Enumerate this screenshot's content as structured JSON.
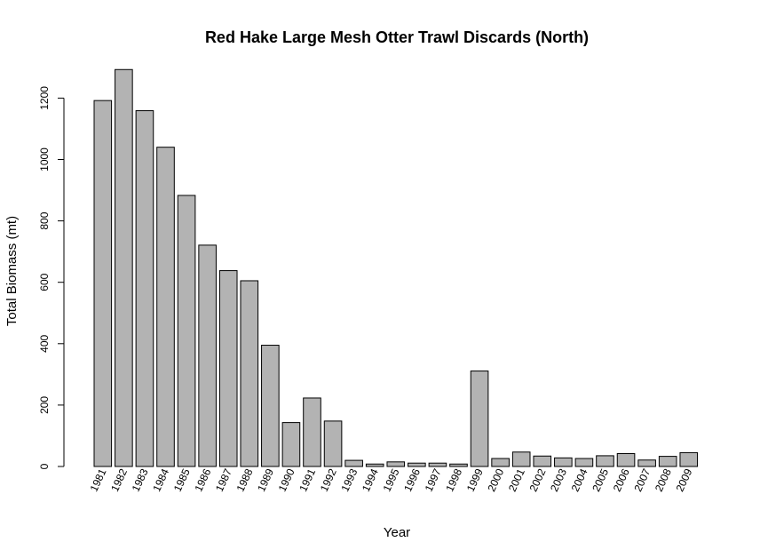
{
  "chart_data": {
    "type": "bar",
    "title": "Red Hake Large Mesh Otter Trawl Discards (North)",
    "xlabel": "Year",
    "ylabel": "Total Biomass (mt)",
    "ylim": [
      0,
      1300
    ],
    "yticks": [
      0,
      200,
      400,
      600,
      800,
      1000,
      1200
    ],
    "bar_color": "#b3b3b3",
    "categories": [
      "1981",
      "1982",
      "1983",
      "1984",
      "1985",
      "1986",
      "1987",
      "1988",
      "1989",
      "1990",
      "1991",
      "1992",
      "1993",
      "1994",
      "1995",
      "1996",
      "1997",
      "1998",
      "1999",
      "2000",
      "2001",
      "2002",
      "2003",
      "2004",
      "2005",
      "2006",
      "2007",
      "2008",
      "2009"
    ],
    "values": [
      1192,
      1293,
      1159,
      1040,
      883,
      721,
      638,
      605,
      395,
      143,
      223,
      148,
      20,
      8,
      15,
      11,
      11,
      8,
      311,
      26,
      47,
      34,
      28,
      26,
      35,
      42,
      21,
      33,
      45
    ]
  }
}
